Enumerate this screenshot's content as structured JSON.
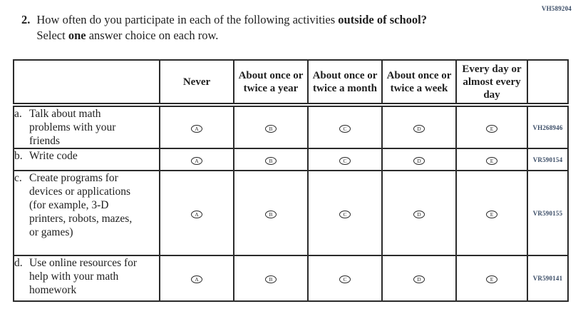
{
  "page": {
    "doc_code": "VH589204"
  },
  "question": {
    "number": "2.",
    "line1_part1": "How often do you participate in each of the following activities ",
    "line1_bold": "outside of school?",
    "line2_part1": "Select ",
    "line2_bold": "one",
    "line2_part2": " answer choice on each row."
  },
  "table": {
    "column_headers": [
      "",
      "Never",
      "About once or twice a year",
      "About once or twice a month",
      "About once or twice a week",
      "Every day or almost every day",
      ""
    ],
    "option_letters": [
      "A",
      "B",
      "C",
      "D",
      "E"
    ],
    "rows": [
      {
        "prefix": "a.",
        "label": "Talk about math problems with your friends",
        "code": "VH268946"
      },
      {
        "prefix": "b.",
        "label": "Write code",
        "code": "VR590154"
      },
      {
        "prefix": "c.",
        "label": "Create programs for devices or applications (for example, 3-D printers, robots, mazes, or games)",
        "code": "VR590155"
      },
      {
        "prefix": "d.",
        "label": "Use online resources for help with your math homework",
        "code": "VR590141"
      }
    ]
  },
  "colors": {
    "text": "#1f1f1f",
    "border": "#2b2b2b",
    "code_text": "#3a4c66",
    "background": "#ffffff"
  }
}
